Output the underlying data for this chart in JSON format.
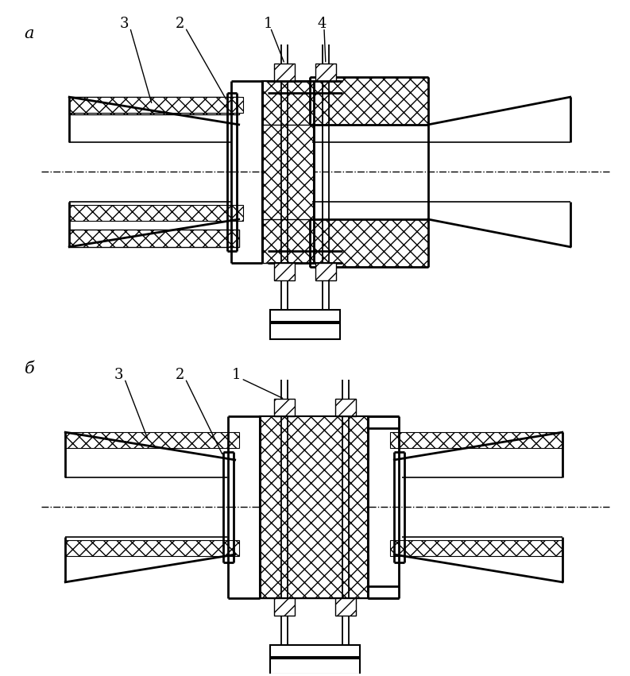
{
  "bg_color": "#ffffff",
  "line_color": "#000000",
  "fig_width": 7.93,
  "fig_height": 8.51,
  "dpi": 100
}
